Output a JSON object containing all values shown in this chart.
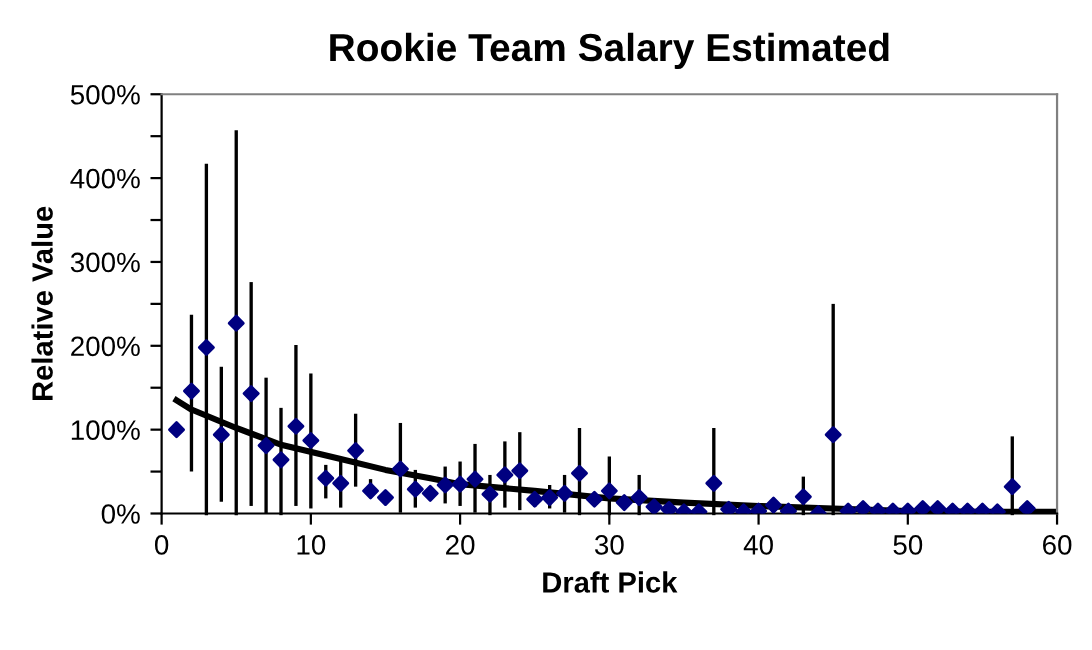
{
  "chart_data": {
    "type": "scatter",
    "title": "Rookie Team Salary Estimated",
    "xlabel": "Draft Pick",
    "ylabel": "Relative Value",
    "xlim": [
      0,
      60
    ],
    "xticks": [
      0,
      10,
      20,
      30,
      40,
      50,
      60
    ],
    "ylim": [
      0,
      500
    ],
    "yticks": [
      {
        "value": 0,
        "label": "0%"
      },
      {
        "value": 50,
        "label": null
      },
      {
        "value": 100,
        "label": "100%"
      },
      {
        "value": 150,
        "label": null
      },
      {
        "value": 200,
        "label": "200%"
      },
      {
        "value": 250,
        "label": null
      },
      {
        "value": 300,
        "label": "300%"
      },
      {
        "value": 350,
        "label": null
      },
      {
        "value": 400,
        "label": "400%"
      },
      {
        "value": 450,
        "label": null
      },
      {
        "value": 500,
        "label": "500%"
      }
    ],
    "grid": false,
    "legend": false,
    "series": [
      {
        "type": "scatter",
        "color": "#000080",
        "marker": "diamond",
        "x": [
          1,
          2,
          3,
          4,
          5,
          6,
          7,
          8,
          9,
          10,
          11,
          12,
          13,
          14,
          15,
          16,
          17,
          18,
          19,
          20,
          21,
          22,
          23,
          24,
          25,
          26,
          27,
          28,
          29,
          30,
          31,
          32,
          33,
          34,
          35,
          36,
          37,
          38,
          39,
          40,
          41,
          42,
          43,
          44,
          45,
          46,
          47,
          48,
          49,
          50,
          51,
          52,
          53,
          54,
          55,
          56,
          57,
          58
        ],
        "values": [
          100,
          146,
          198,
          94,
          227,
          143,
          81,
          64,
          104,
          87,
          42,
          36,
          75,
          27,
          19,
          53,
          29,
          24,
          34,
          35,
          41,
          23,
          46,
          51,
          17,
          19,
          24,
          48,
          17,
          27,
          13,
          19,
          8,
          5,
          2,
          2,
          36,
          5,
          2,
          3,
          10,
          3,
          20,
          0,
          94,
          3,
          6,
          3,
          3,
          3,
          6,
          6,
          3,
          3,
          3,
          2,
          32,
          6
        ],
        "errors": [
          null,
          [
            52,
            235
          ],
          [
            0,
            415
          ],
          [
            16,
            173
          ],
          [
            0,
            455
          ],
          [
            11,
            274
          ],
          [
            2,
            160
          ],
          [
            0,
            124
          ],
          [
            11,
            199
          ],
          [
            8,
            165
          ],
          [
            20,
            56
          ],
          [
            9,
            64
          ],
          [
            34,
            117
          ],
          [
            21,
            39
          ],
          null,
          [
            3,
            106
          ],
          [
            9,
            50
          ],
          null,
          [
            14,
            54
          ],
          [
            11,
            60
          ],
          [
            3,
            81
          ],
          [
            0,
            44
          ],
          [
            9,
            84
          ],
          [
            6,
            95
          ],
          [
            10,
            26
          ],
          [
            8,
            32
          ],
          [
            3,
            44
          ],
          [
            0,
            100
          ],
          null,
          [
            0,
            66
          ],
          null,
          [
            0,
            44
          ],
          null,
          null,
          null,
          null,
          [
            0,
            100
          ],
          null,
          null,
          null,
          null,
          null,
          [
            0,
            42
          ],
          null,
          [
            0,
            248
          ],
          null,
          null,
          null,
          null,
          null,
          null,
          null,
          null,
          null,
          null,
          null,
          [
            0,
            90
          ],
          null
        ]
      },
      {
        "type": "line",
        "color": "#000000",
        "marker": "none",
        "line_style": "solid",
        "x": [
          1,
          2,
          5,
          8,
          12,
          15,
          18,
          20,
          25,
          30,
          35,
          40,
          45,
          50,
          55,
          60
        ],
        "values": [
          135,
          124,
          102,
          82,
          65,
          52,
          42,
          35,
          27,
          18,
          13,
          9,
          6,
          3,
          2,
          2
        ]
      }
    ]
  }
}
